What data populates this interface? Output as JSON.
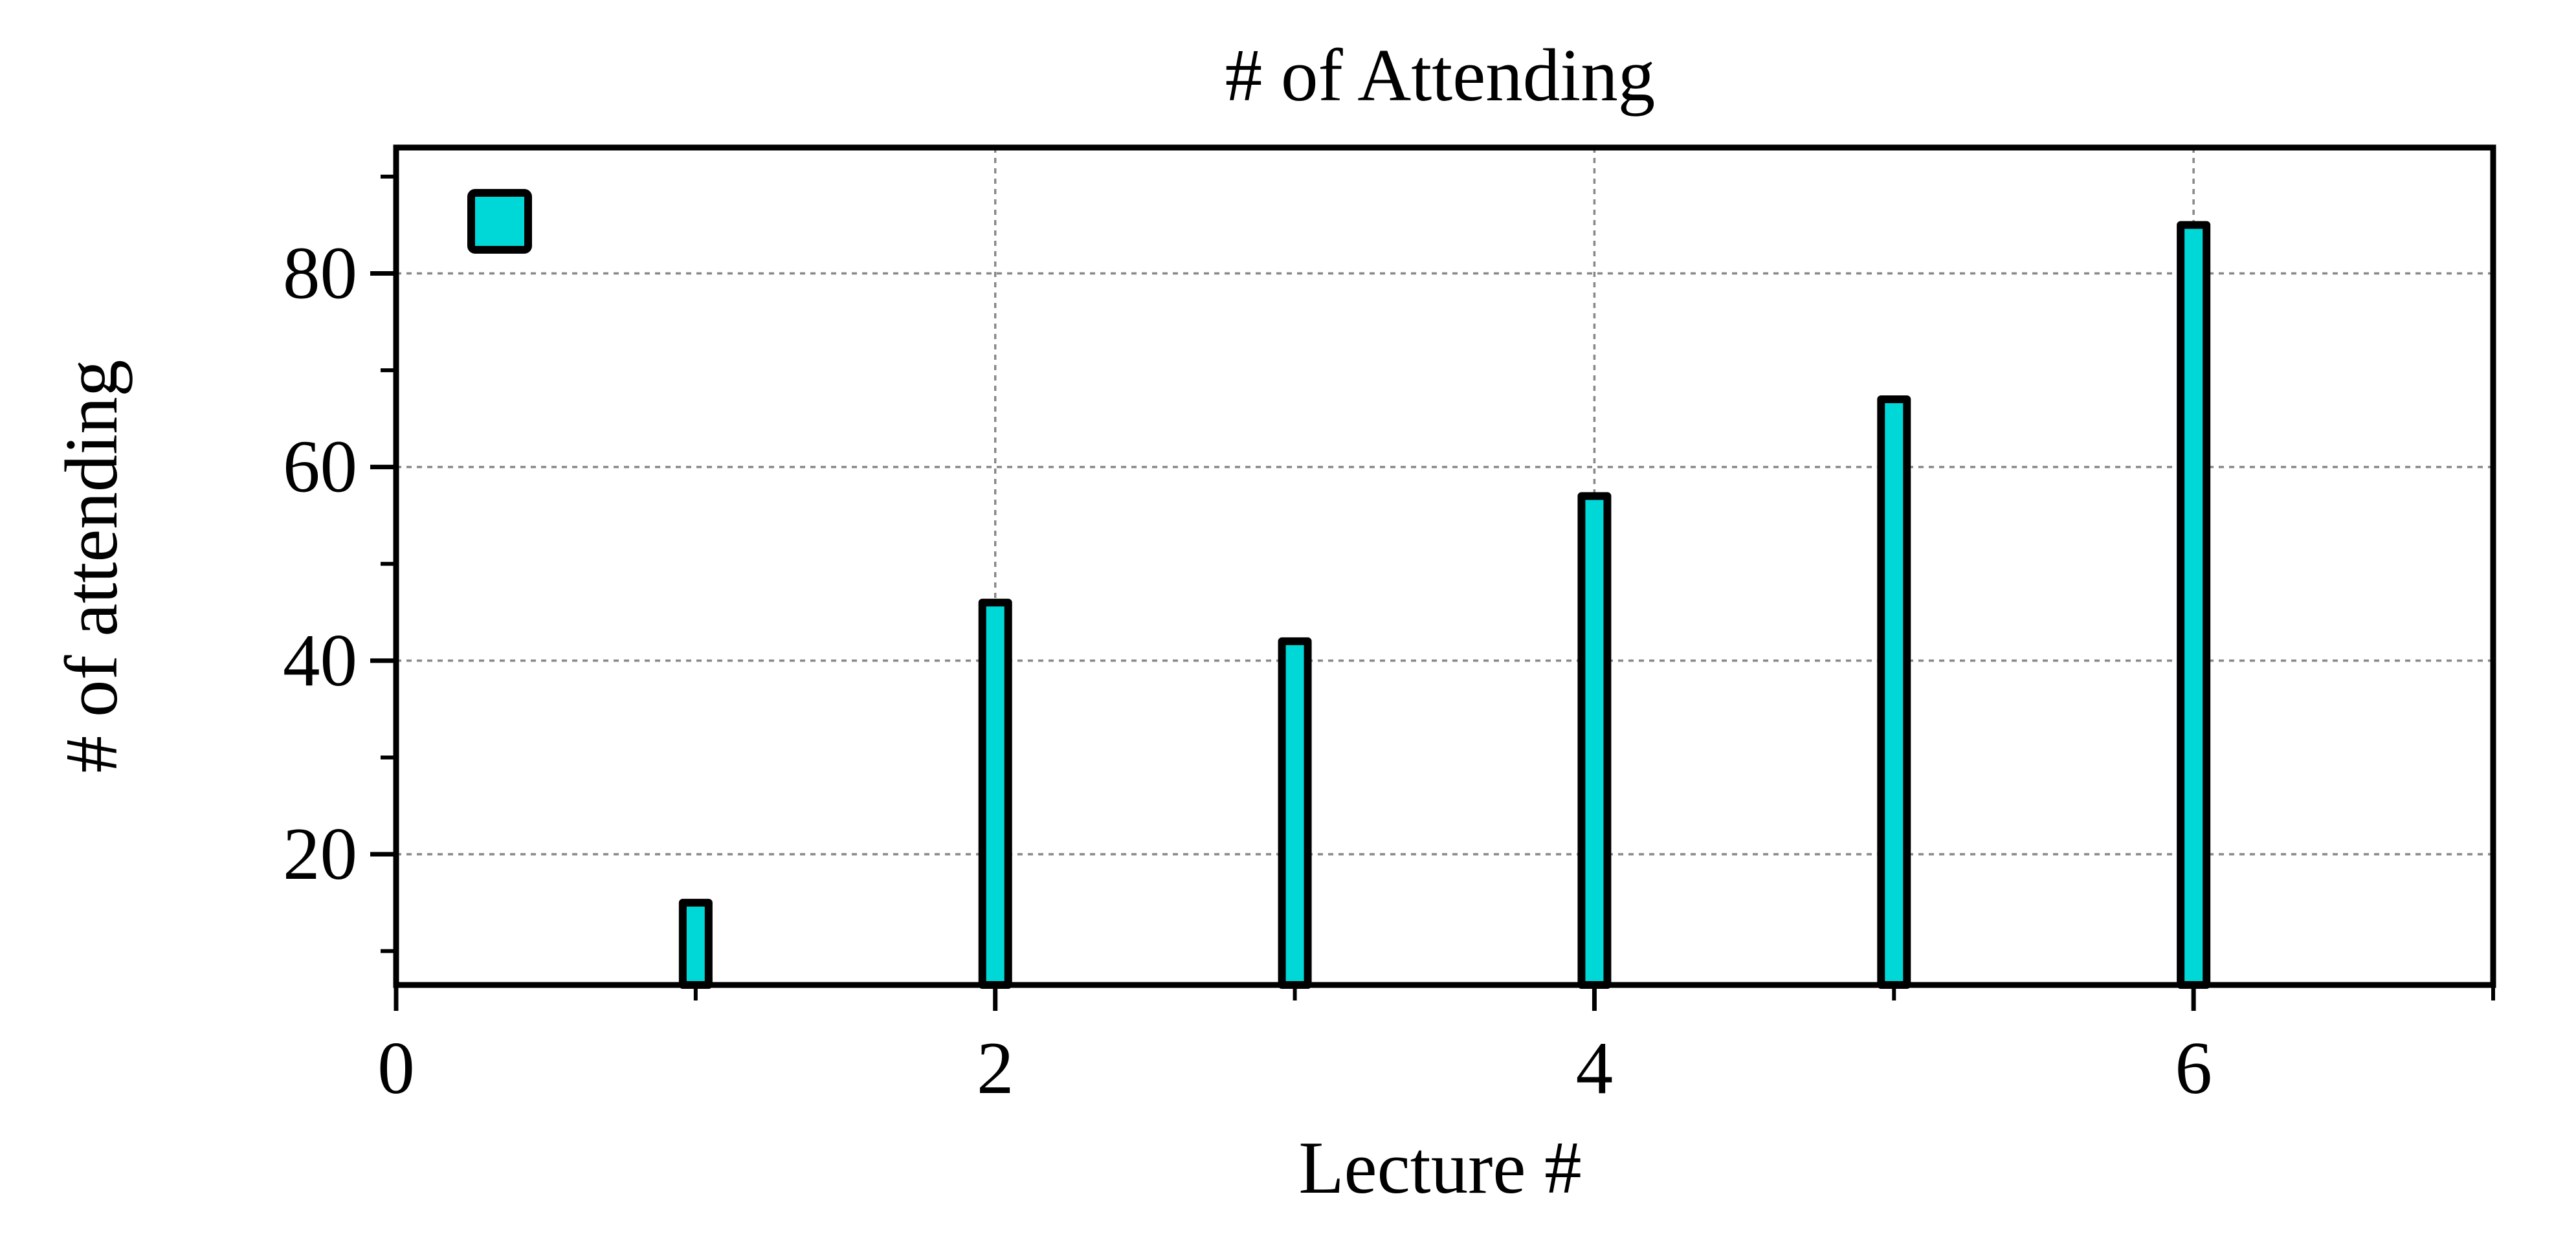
{
  "chart_data": {
    "type": "bar",
    "title": "# of Attending",
    "xlabel": "Lecture #",
    "ylabel": "# of attending",
    "x": [
      1,
      2,
      3,
      4,
      5,
      6
    ],
    "series": [
      {
        "values": [
          15,
          46,
          42,
          57,
          67,
          85
        ],
        "color": "#00d8d8"
      }
    ],
    "xlim": [
      0,
      7
    ],
    "ylim": [
      6.5,
      93
    ],
    "xticks": [
      0,
      2,
      4,
      6
    ],
    "xticklabels": [
      "0",
      "2",
      "4",
      "6"
    ],
    "x_minor_ticks": [
      1,
      3,
      5,
      7
    ],
    "yticks": [
      20,
      40,
      60,
      80
    ],
    "yticklabels": [
      "20",
      "40",
      "60",
      "80"
    ],
    "y_minor_ticks": [
      10,
      30,
      50,
      70,
      90
    ],
    "grid": true,
    "grid_style": "dotted",
    "legend": {
      "placement": "top-left",
      "entries": [
        {
          "label": "",
          "color": "#00d8d8"
        }
      ]
    },
    "colors": {
      "bar_fill": "#00d8d8",
      "bar_edge": "#000000",
      "grid": "#888888",
      "axis": "#000000"
    }
  }
}
